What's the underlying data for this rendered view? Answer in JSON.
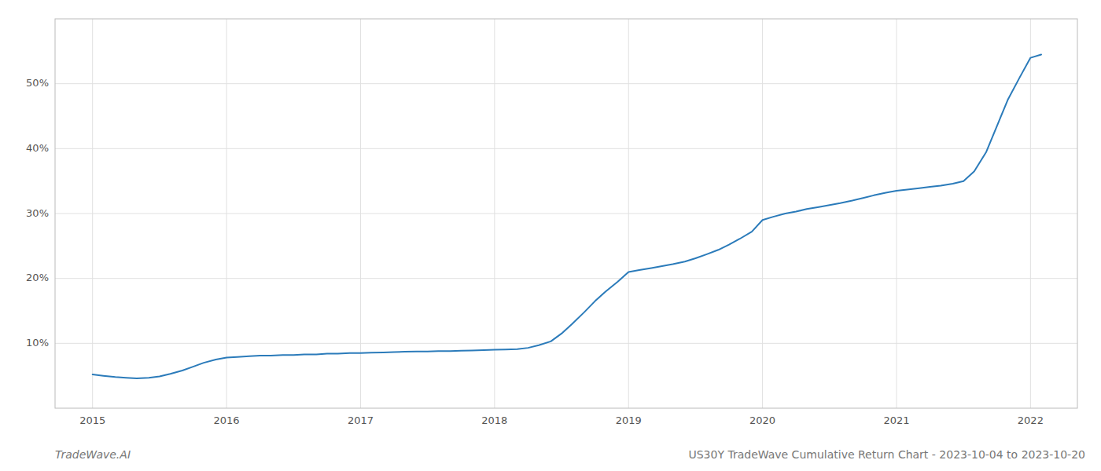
{
  "chart_data": {
    "type": "line",
    "title": "US30Y TradeWave Cumulative Return Chart - 2023-10-04 to 2023-10-20",
    "annotations": [
      "TradeWave.AI"
    ],
    "x": [
      2015.0,
      2015.08,
      2015.17,
      2015.25,
      2015.33,
      2015.42,
      2015.5,
      2015.58,
      2015.67,
      2015.75,
      2015.83,
      2015.92,
      2016.0,
      2016.08,
      2016.17,
      2016.25,
      2016.33,
      2016.42,
      2016.5,
      2016.58,
      2016.67,
      2016.75,
      2016.83,
      2016.92,
      2017.0,
      2017.08,
      2017.17,
      2017.25,
      2017.33,
      2017.42,
      2017.5,
      2017.58,
      2017.67,
      2017.75,
      2017.83,
      2017.92,
      2018.0,
      2018.08,
      2018.17,
      2018.25,
      2018.33,
      2018.42,
      2018.5,
      2018.58,
      2018.67,
      2018.75,
      2018.83,
      2018.92,
      2019.0,
      2019.08,
      2019.17,
      2019.25,
      2019.33,
      2019.42,
      2019.5,
      2019.58,
      2019.67,
      2019.75,
      2019.83,
      2019.92,
      2020.0,
      2020.08,
      2020.17,
      2020.25,
      2020.33,
      2020.42,
      2020.5,
      2020.58,
      2020.67,
      2020.75,
      2020.83,
      2020.92,
      2021.0,
      2021.08,
      2021.17,
      2021.25,
      2021.33,
      2021.42,
      2021.5,
      2021.58,
      2021.67,
      2021.75,
      2021.83,
      2021.92,
      2022.0,
      2022.08
    ],
    "values": [
      5.2,
      5.0,
      4.8,
      4.7,
      4.6,
      4.7,
      4.9,
      5.3,
      5.8,
      6.4,
      7.0,
      7.5,
      7.8,
      7.9,
      8.0,
      8.1,
      8.1,
      8.2,
      8.2,
      8.3,
      8.3,
      8.4,
      8.4,
      8.5,
      8.5,
      8.55,
      8.6,
      8.65,
      8.7,
      8.75,
      8.75,
      8.8,
      8.8,
      8.85,
      8.9,
      8.95,
      9.0,
      9.05,
      9.1,
      9.3,
      9.7,
      10.3,
      11.5,
      13.0,
      14.8,
      16.5,
      18.0,
      19.5,
      21.0,
      21.3,
      21.6,
      21.9,
      22.2,
      22.6,
      23.1,
      23.7,
      24.4,
      25.2,
      26.1,
      27.2,
      29.0,
      29.5,
      30.0,
      30.3,
      30.7,
      31.0,
      31.3,
      31.6,
      32.0,
      32.4,
      32.8,
      33.2,
      33.5,
      33.7,
      33.9,
      34.1,
      34.3,
      34.6,
      35.0,
      36.5,
      39.5,
      43.5,
      47.5,
      51.0,
      54.0,
      54.5
    ],
    "color": "#2b7bba",
    "xlim": [
      2014.72,
      2022.35
    ],
    "ylim": [
      0,
      60
    ],
    "xticks": [
      2015,
      2016,
      2017,
      2018,
      2019,
      2020,
      2021,
      2022
    ],
    "yticks": [
      {
        "value": 10,
        "label": "10%"
      },
      {
        "value": 20,
        "label": "20%"
      },
      {
        "value": 30,
        "label": "30%"
      },
      {
        "value": 40,
        "label": "40%"
      },
      {
        "value": 50,
        "label": "50%"
      }
    ],
    "grid": true
  }
}
